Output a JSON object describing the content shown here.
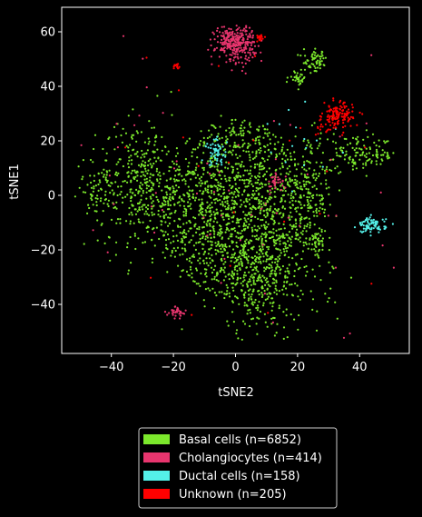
{
  "chart_data": {
    "type": "scatter",
    "title": "",
    "xlabel": "tSNE2",
    "ylabel": "tSNE1",
    "xlim": [
      -56,
      56
    ],
    "ylim": [
      -58,
      69
    ],
    "xticks": [
      -40,
      -20,
      0,
      20,
      40
    ],
    "xtick_labels": [
      "−40",
      "−20",
      "0",
      "20",
      "40"
    ],
    "yticks": [
      -40,
      -20,
      0,
      20,
      40,
      60
    ],
    "ytick_labels": [
      "−40",
      "−20",
      "0",
      "20",
      "40",
      "60"
    ],
    "grid": false,
    "legend_position": "below",
    "background": "#000000",
    "series": [
      {
        "name": "Basal cells (n=6852)",
        "color": "#7CE82C",
        "count": 6852,
        "points_note": "main cloud",
        "clusters": [
          {
            "cx": 0,
            "cy": -5,
            "sx": 15,
            "sy": 22,
            "weight": 0.62
          },
          {
            "cx": -30,
            "cy": 3,
            "sx": 7,
            "sy": 12,
            "weight": 0.12
          },
          {
            "cx": 10,
            "cy": -32,
            "sx": 9,
            "sy": 10,
            "weight": 0.1
          },
          {
            "cx": 24,
            "cy": 0,
            "sx": 4,
            "sy": 10,
            "weight": 0.06
          },
          {
            "cx": 40,
            "cy": 15,
            "sx": 6,
            "sy": 3,
            "weight": 0.04
          },
          {
            "cx": 26,
            "cy": 49,
            "sx": 2,
            "sy": 2,
            "weight": 0.02
          },
          {
            "cx": 20,
            "cy": 43,
            "sx": 1.3,
            "sy": 1.2,
            "weight": 0.01
          },
          {
            "cx": 26,
            "cy": -17,
            "sx": 1.5,
            "sy": 2,
            "weight": 0.01
          },
          {
            "cx": -45,
            "cy": 3,
            "sx": 3,
            "sy": 5,
            "weight": 0.02
          }
        ]
      },
      {
        "name": "Cholangiocytes (n=414)",
        "color": "#E8356E",
        "count": 414,
        "clusters": [
          {
            "cx": 0,
            "cy": 56,
            "sx": 3.2,
            "sy": 3.2,
            "weight": 0.7
          },
          {
            "cx": 13,
            "cy": 4.5,
            "sx": 1.5,
            "sy": 1.5,
            "weight": 0.08
          },
          {
            "cx": -19,
            "cy": -43,
            "sx": 1.5,
            "sy": 1.2,
            "weight": 0.08
          },
          {
            "cx": 0,
            "cy": 0,
            "sx": 28,
            "sy": 30,
            "weight": 0.14
          }
        ]
      },
      {
        "name": "Ductal cells (n=158)",
        "color": "#54F0E8",
        "count": 158,
        "clusters": [
          {
            "cx": 44,
            "cy": -11,
            "sx": 2.2,
            "sy": 1.4,
            "weight": 0.55
          },
          {
            "cx": -6,
            "cy": 16,
            "sx": 1.8,
            "sy": 2.5,
            "weight": 0.35
          },
          {
            "cx": 18,
            "cy": 20,
            "sx": 8,
            "sy": 8,
            "weight": 0.1
          }
        ]
      },
      {
        "name": "Unknown (n=205)",
        "color": "#FF0000",
        "count": 205,
        "clusters": [
          {
            "cx": 33,
            "cy": 29,
            "sx": 2.4,
            "sy": 2.4,
            "weight": 0.65
          },
          {
            "cx": 8,
            "cy": 58,
            "sx": 0.8,
            "sy": 0.6,
            "weight": 0.12
          },
          {
            "cx": -19,
            "cy": 47,
            "sx": 0.6,
            "sy": 0.6,
            "weight": 0.06
          },
          {
            "cx": 28,
            "cy": 25,
            "sx": 1.2,
            "sy": 1.5,
            "weight": 0.07
          },
          {
            "cx": 0,
            "cy": 5,
            "sx": 25,
            "sy": 30,
            "weight": 0.1
          }
        ]
      }
    ]
  }
}
